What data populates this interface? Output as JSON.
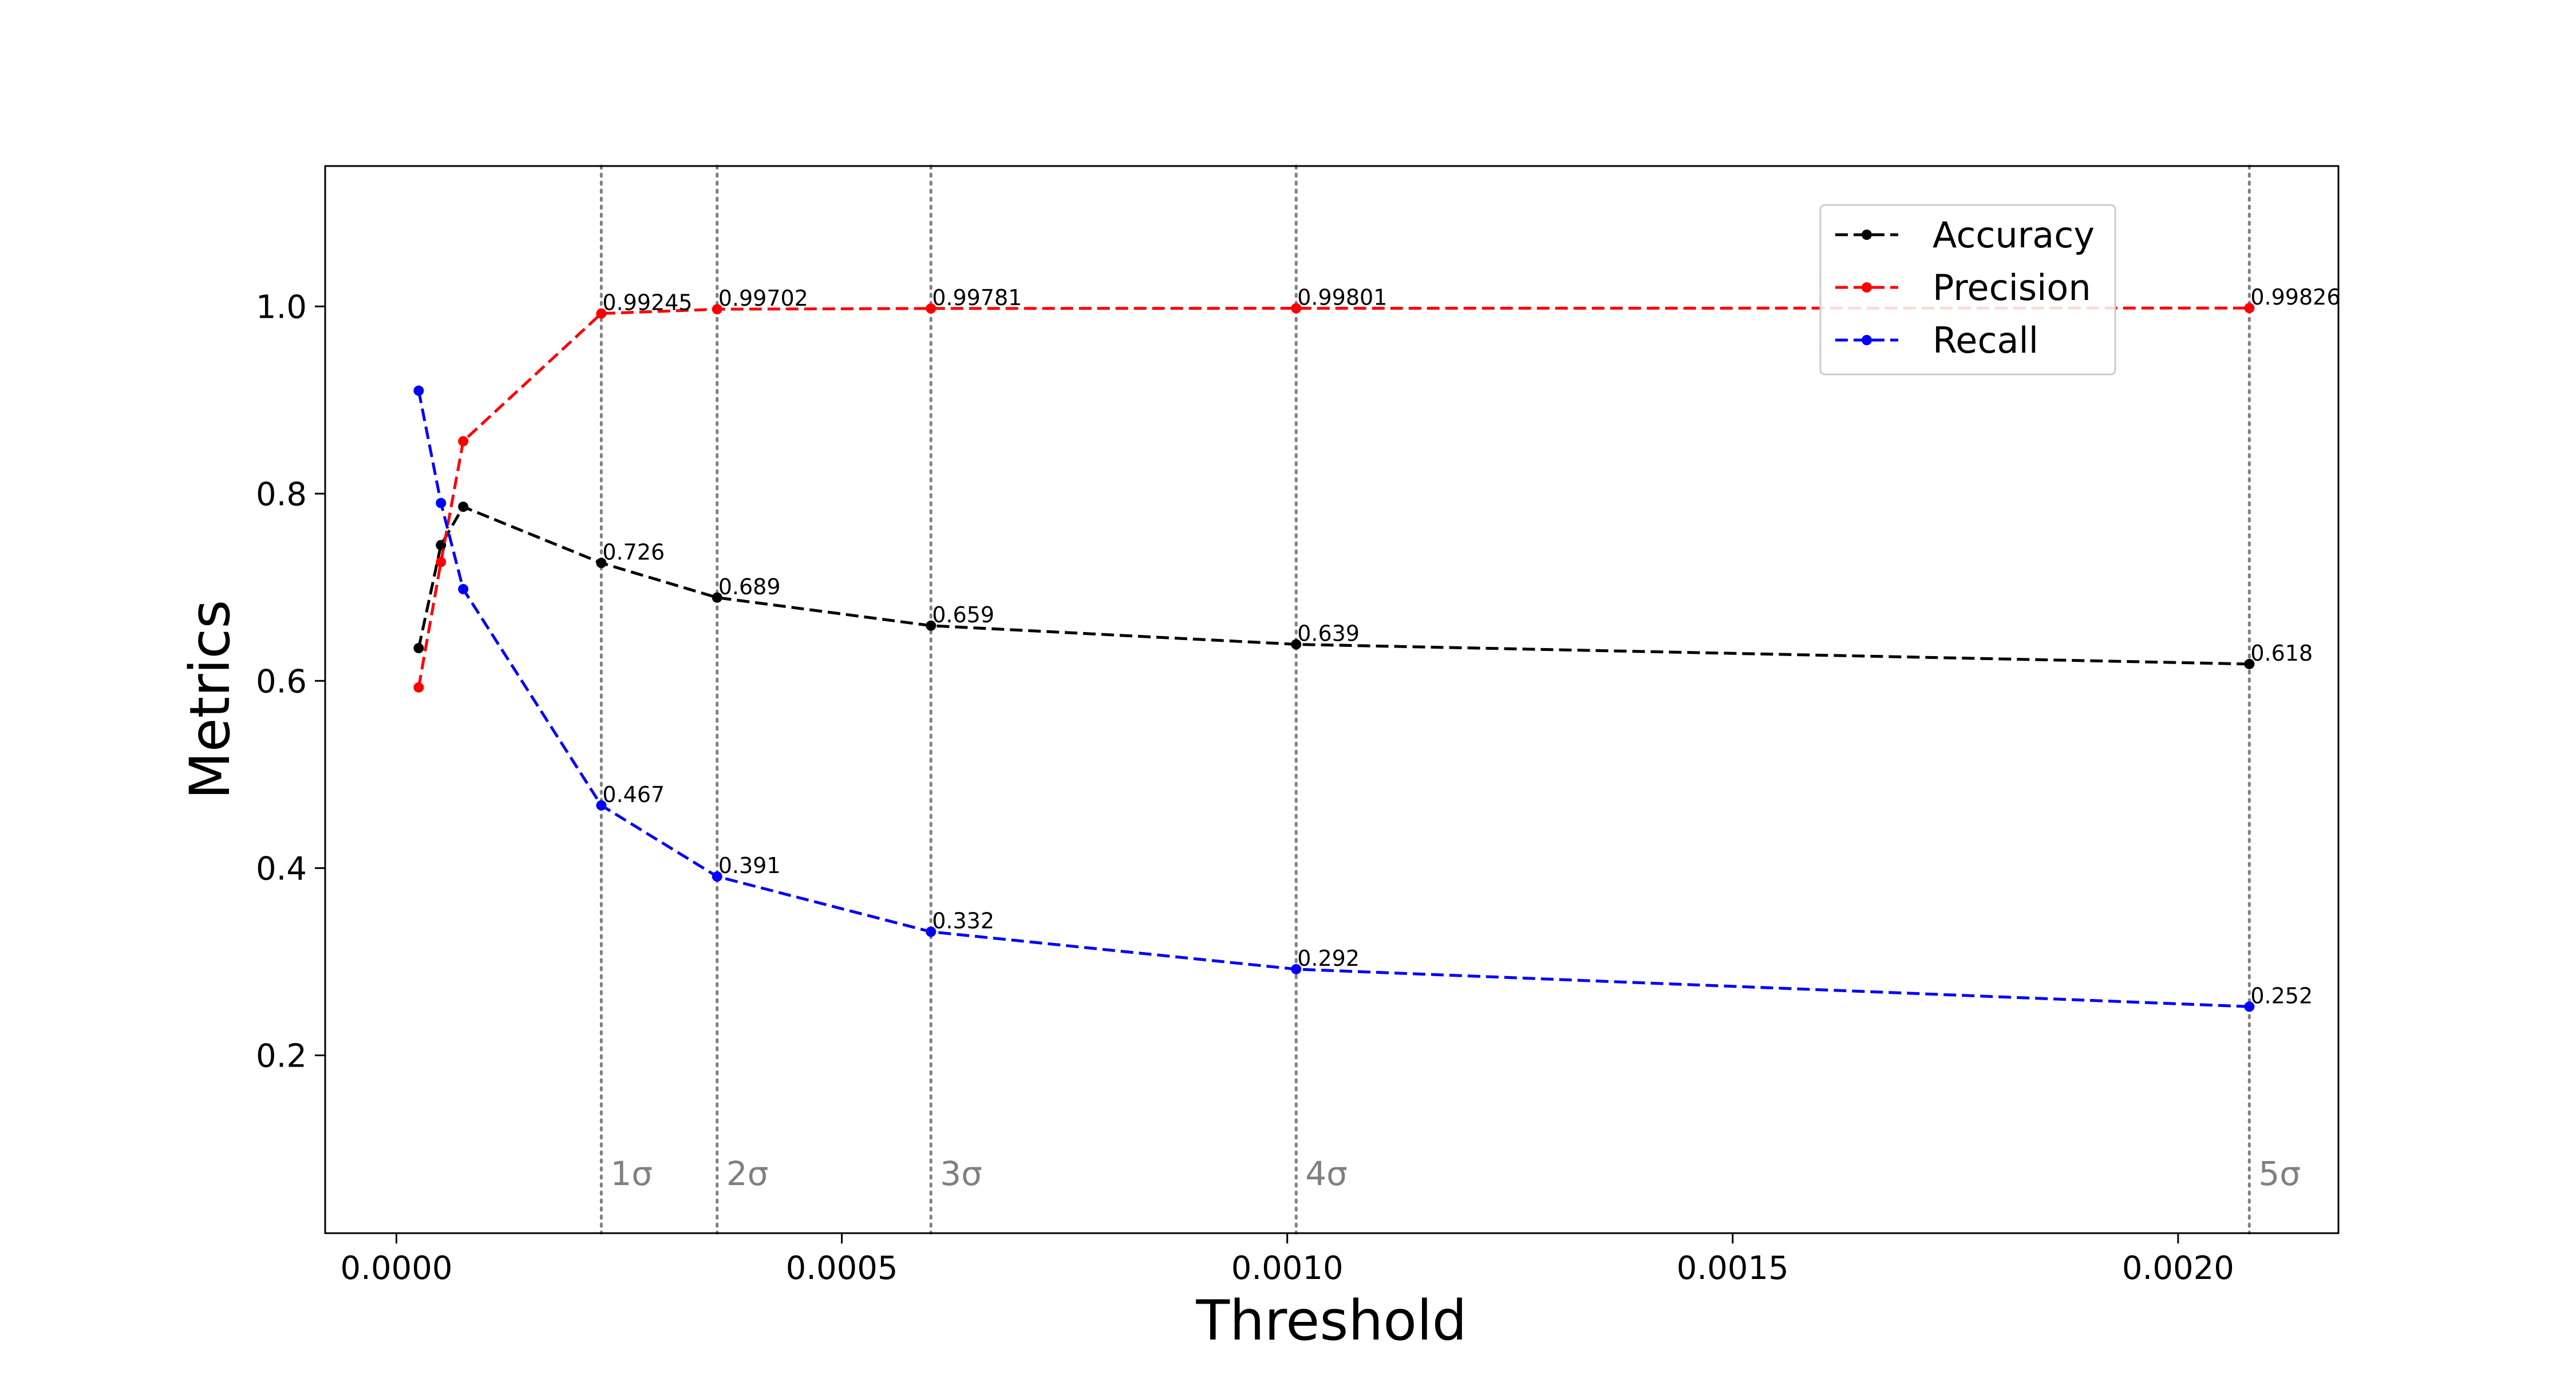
{
  "chart_data": {
    "type": "line",
    "xlabel": "Threshold",
    "ylabel": "Metrics",
    "xlim": [
      -8e-05,
      0.00218
    ],
    "ylim": [
      0.01,
      1.15
    ],
    "x_ticks": [
      0.0,
      0.0005,
      0.001,
      0.0015,
      0.002
    ],
    "x_tick_labels": [
      "0.0000",
      "0.0005",
      "0.0010",
      "0.0015",
      "0.0020"
    ],
    "y_ticks": [
      0.2,
      0.4,
      0.6,
      0.8,
      1.0
    ],
    "y_tick_labels": [
      "0.2",
      "0.4",
      "0.6",
      "0.8",
      "1.0"
    ],
    "grid": false,
    "legend_position": "top-right",
    "vertical_lines": [
      {
        "x": 0.00023,
        "label": "1σ"
      },
      {
        "x": 0.00036,
        "label": "2σ"
      },
      {
        "x": 0.0006,
        "label": "3σ"
      },
      {
        "x": 0.00101,
        "label": "4σ"
      },
      {
        "x": 0.00208,
        "label": "5σ"
      }
    ],
    "series": [
      {
        "name": "Accuracy",
        "color": "#000000",
        "x": [
          2.5e-05,
          5e-05,
          7.5e-05,
          0.00023,
          0.00036,
          0.0006,
          0.00101,
          0.00208
        ],
        "y": [
          0.635,
          0.745,
          0.786,
          0.726,
          0.689,
          0.659,
          0.639,
          0.618
        ],
        "labels": [
          "",
          "",
          "",
          "0.726",
          "0.689",
          "0.659",
          "0.639",
          "0.618"
        ]
      },
      {
        "name": "Precision",
        "color": "#ff0000",
        "x": [
          2.5e-05,
          5e-05,
          7.5e-05,
          0.00023,
          0.00036,
          0.0006,
          0.00101,
          0.00208
        ],
        "y": [
          0.593,
          0.727,
          0.856,
          0.99245,
          0.99702,
          0.99781,
          0.99801,
          0.99826
        ],
        "labels": [
          "",
          "",
          "",
          "0.99245",
          "0.99702",
          "0.99781",
          "0.99801",
          "0.99826"
        ]
      },
      {
        "name": "Recall",
        "color": "#0000ff",
        "x": [
          2.5e-05,
          5e-05,
          7.5e-05,
          0.00023,
          0.00036,
          0.0006,
          0.00101,
          0.00208
        ],
        "y": [
          0.91,
          0.79,
          0.698,
          0.467,
          0.391,
          0.332,
          0.292,
          0.252
        ],
        "labels": [
          "",
          "",
          "",
          "0.467",
          "0.391",
          "0.332",
          "0.292",
          "0.252"
        ]
      }
    ]
  }
}
